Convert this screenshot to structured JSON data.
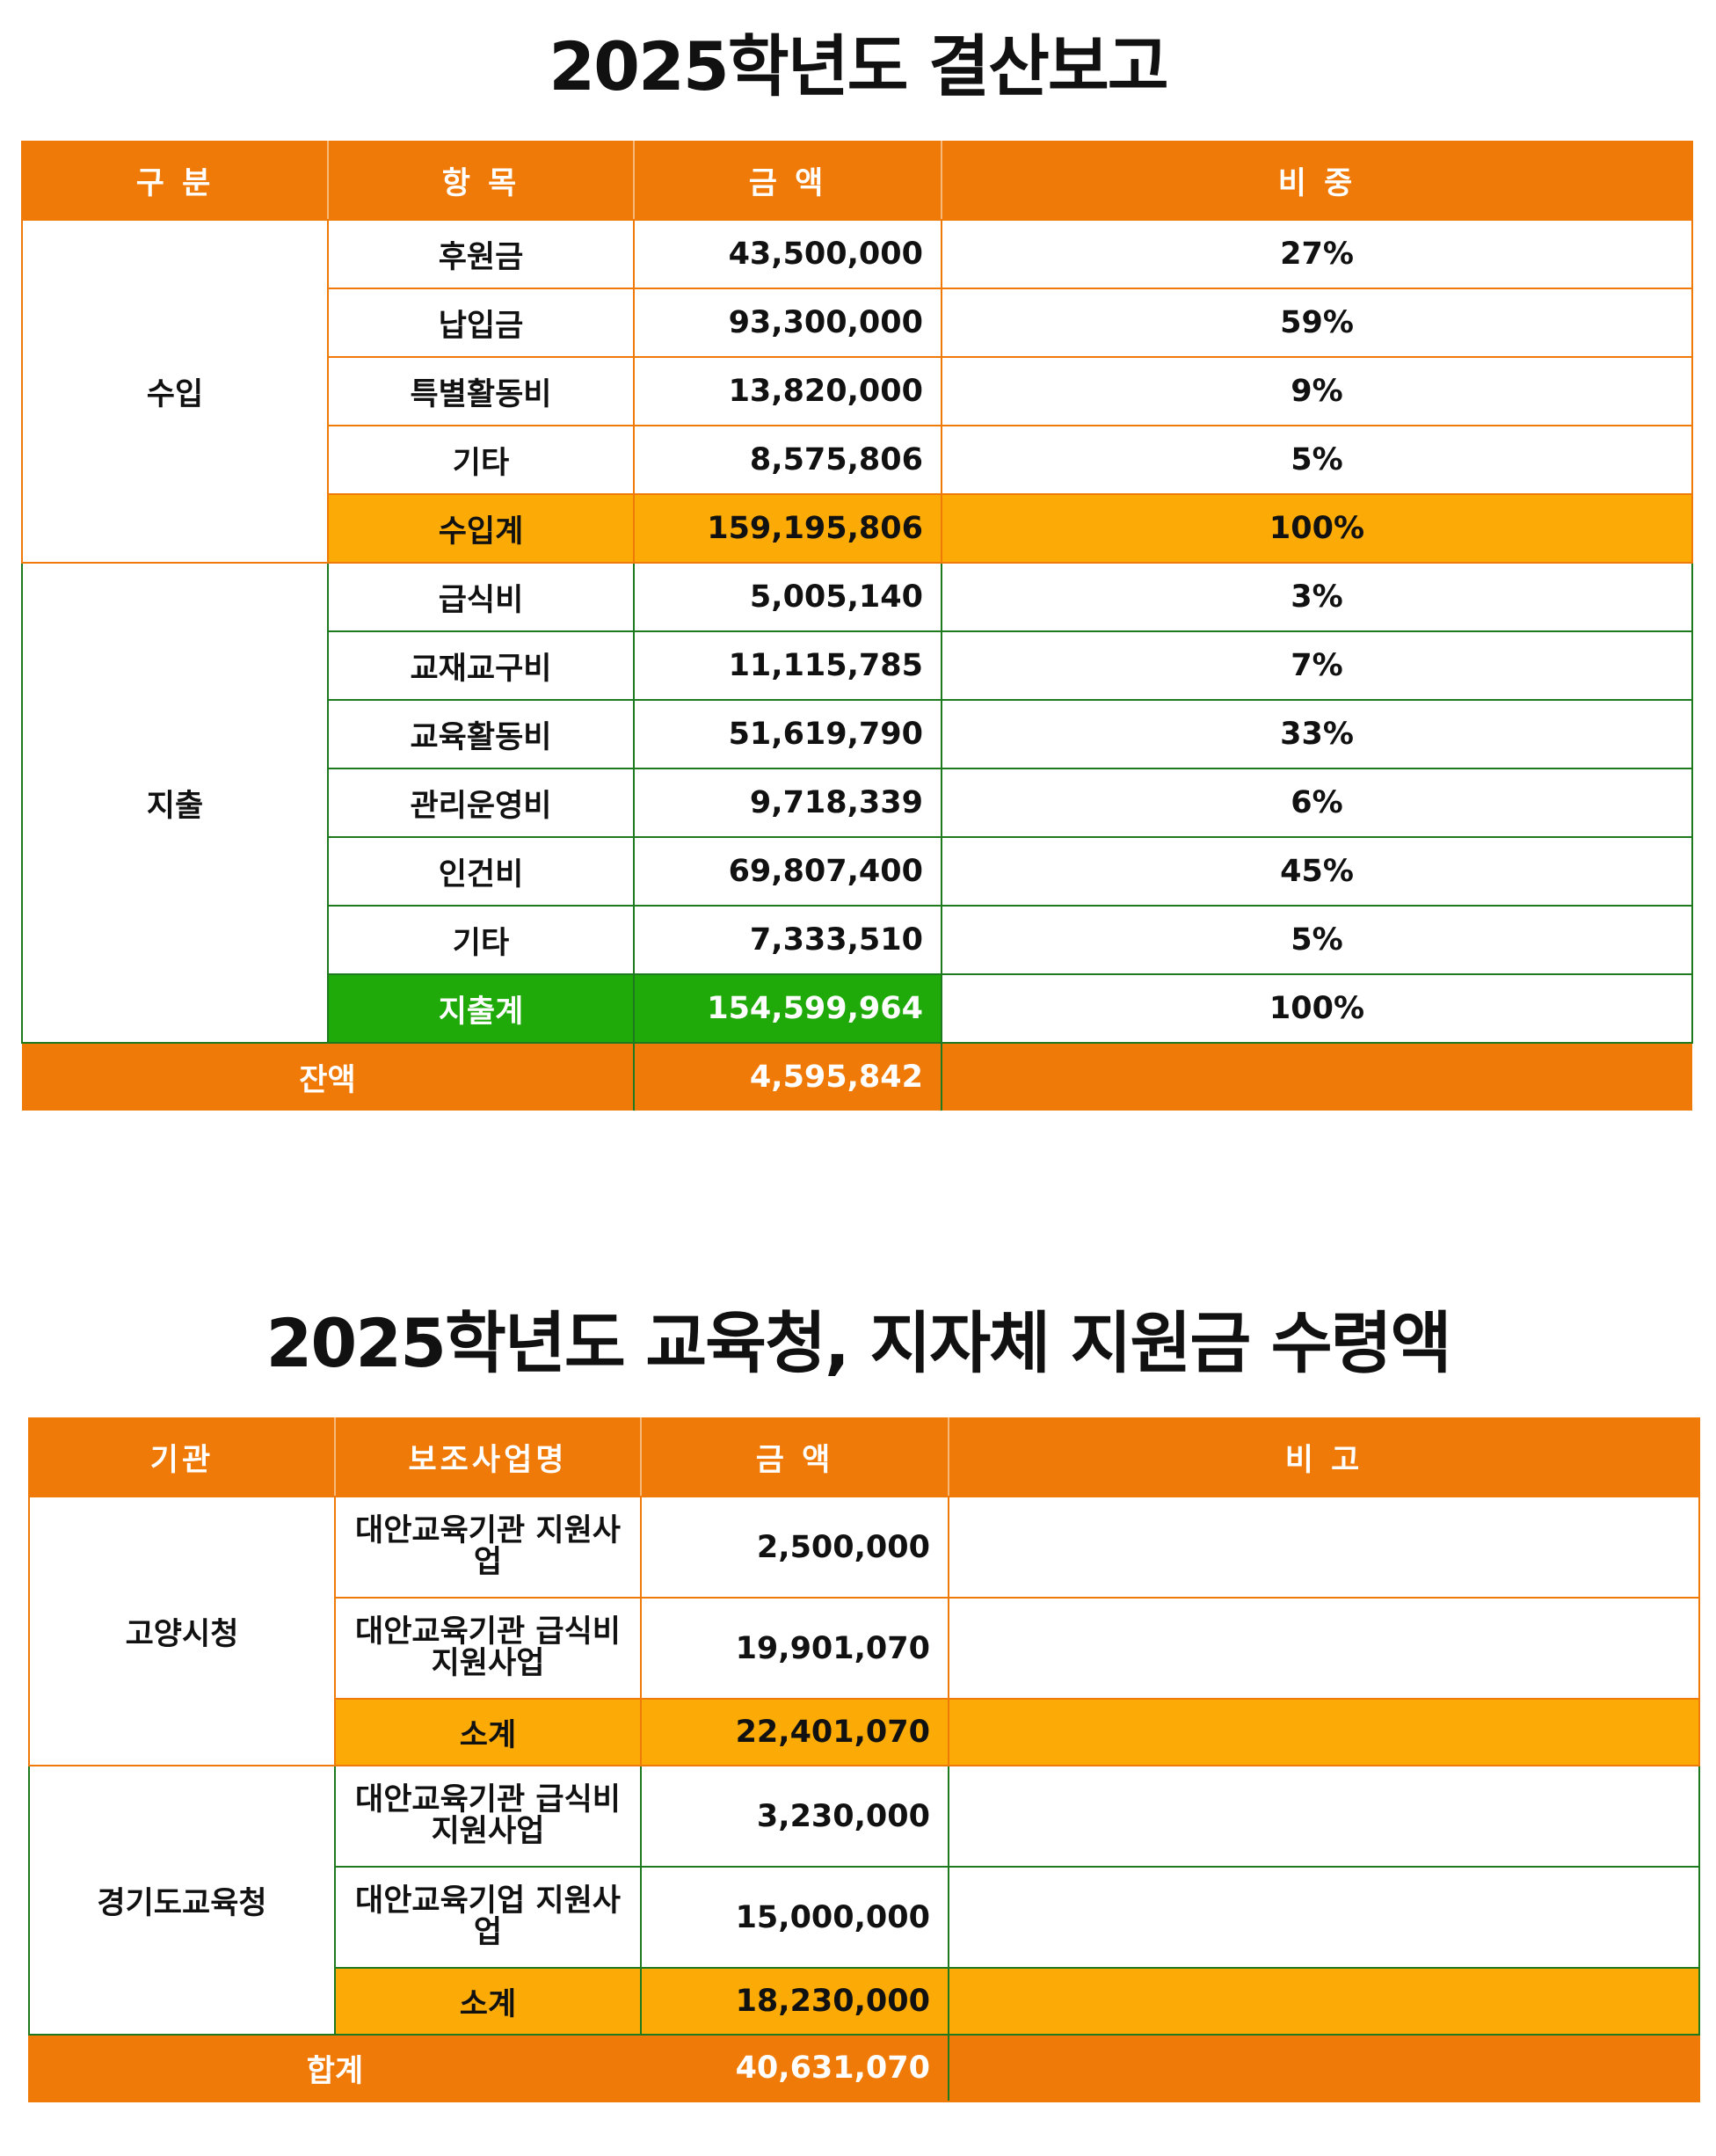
{
  "report": {
    "title": "2025학년도 결산보고",
    "headers": [
      "구 분",
      "항 목",
      "금 액",
      "비 중"
    ],
    "income": {
      "category": "수입",
      "items": [
        {
          "name": "후원금",
          "amount": "43,500,000",
          "share": "27%"
        },
        {
          "name": "납입금",
          "amount": "93,300,000",
          "share": "59%"
        },
        {
          "name": "특별활동비",
          "amount": "13,820,000",
          "share": "9%"
        },
        {
          "name": "기타",
          "amount": "8,575,806",
          "share": "5%"
        }
      ],
      "total": {
        "name": "수입계",
        "amount": "159,195,806",
        "share": "100%"
      }
    },
    "expense": {
      "category": "지출",
      "items": [
        {
          "name": "급식비",
          "amount": "5,005,140",
          "share": "3%"
        },
        {
          "name": "교재교구비",
          "amount": "11,115,785",
          "share": "7%"
        },
        {
          "name": "교육활동비",
          "amount": "51,619,790",
          "share": "33%"
        },
        {
          "name": "관리운영비",
          "amount": "9,718,339",
          "share": "6%"
        },
        {
          "name": "인건비",
          "amount": "69,807,400",
          "share": "45%"
        },
        {
          "name": "기타",
          "amount": "7,333,510",
          "share": "5%"
        }
      ],
      "total": {
        "name": "지출계",
        "amount": "154,599,964",
        "share": "100%"
      }
    },
    "balance": {
      "label": "잔액",
      "amount": "4,595,842"
    }
  },
  "subsidy": {
    "title": "2025학년도 교육청, 지자체 지원금 수령액",
    "headers": [
      "기관",
      "보조사업명",
      "금 액",
      "비 고"
    ],
    "groups": [
      {
        "agency": "고양시청",
        "items": [
          {
            "project": "대안교육기관 지원사업",
            "amount": "2,500,000",
            "note": ""
          },
          {
            "project": "대안교육기관 급식비 지원사업",
            "amount": "19,901,070",
            "note": ""
          }
        ],
        "subtotal": {
          "label": "소계",
          "amount": "22,401,070"
        }
      },
      {
        "agency": "경기도교육청",
        "items": [
          {
            "project": "대안교육기관 급식비 지원사업",
            "amount": "3,230,000",
            "note": ""
          },
          {
            "project": "대안교육기업 지원사업",
            "amount": "15,000,000",
            "note": ""
          }
        ],
        "subtotal": {
          "label": "소계",
          "amount": "18,230,000"
        }
      }
    ],
    "total": {
      "label": "합계",
      "amount": "40,631,070"
    }
  }
}
